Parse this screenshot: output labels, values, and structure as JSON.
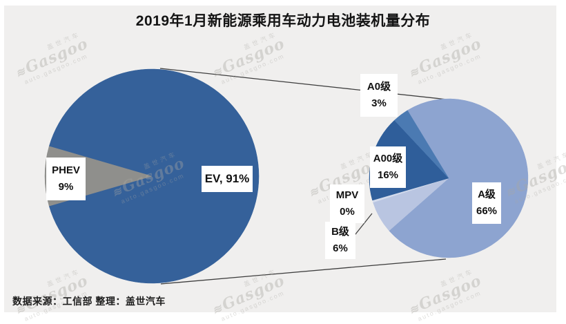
{
  "header": {
    "title": "2019年1月新能源乘用车动力电池装机量分布"
  },
  "footer": {
    "source_note": "数据来源：工信部  整理：盖世汽车"
  },
  "watermark": {
    "cn": "盖世汽车",
    "brand": "Gasgoo",
    "logo_glyph": "≋",
    "url": "auto.gasgoo.com"
  },
  "colors": {
    "background_panel": "#f0efee",
    "connector_line": "#3d3d3d",
    "label_box": "#ffffff",
    "ev": "#35619a",
    "phev": "#8f8f8c",
    "a_class": "#8da4d0",
    "b_class": "#b9c5e1",
    "mpv": "#d3dbec",
    "a00_class": "#2f5e9a",
    "a0_class": "#4b7ab2"
  },
  "chart_data": [
    {
      "type": "pie",
      "name": "fuel-type-split",
      "title": "2019年1月新能源乘用车动力电池装机量分布",
      "unit": "%",
      "start_angle_deg": 286.2,
      "slices": [
        {
          "label": "EV",
          "value_pct": 91,
          "display": "EV, 91%",
          "lines": [
            "EV, 91%"
          ],
          "color": "#35619a"
        },
        {
          "label": "PHEV",
          "value_pct": 9,
          "display": "PHEV 9%",
          "lines": [
            "PHEV",
            "9%"
          ],
          "color": "#8f8f8c"
        }
      ]
    },
    {
      "type": "pie",
      "name": "ev-segment-breakdown",
      "note": "secondary pie: breakdown of the EV 91% share, percentages shown are of grand total",
      "unit": "%",
      "start_angle_deg": 328.7,
      "zero_display_weight": 0.4,
      "slices": [
        {
          "label": "A级",
          "value_pct": 66,
          "display": "A级 66%",
          "lines": [
            "A级",
            "66%"
          ],
          "color": "#8da4d0"
        },
        {
          "label": "B级",
          "value_pct": 6,
          "display": "B级 6%",
          "lines": [
            "B级",
            "6%"
          ],
          "color": "#b9c5e1"
        },
        {
          "label": "MPV",
          "value_pct": 0,
          "display": "MPV 0%",
          "lines": [
            "MPV",
            "0%"
          ],
          "color": "#d3dbec"
        },
        {
          "label": "A00级",
          "value_pct": 16,
          "display": "A00级 16%",
          "lines": [
            "A00级",
            "16%"
          ],
          "color": "#2f5e9a"
        },
        {
          "label": "A0级",
          "value_pct": 3,
          "display": "A0级 3%",
          "lines": [
            "A0级",
            "3%"
          ],
          "color": "#4b7ab2"
        }
      ]
    }
  ]
}
